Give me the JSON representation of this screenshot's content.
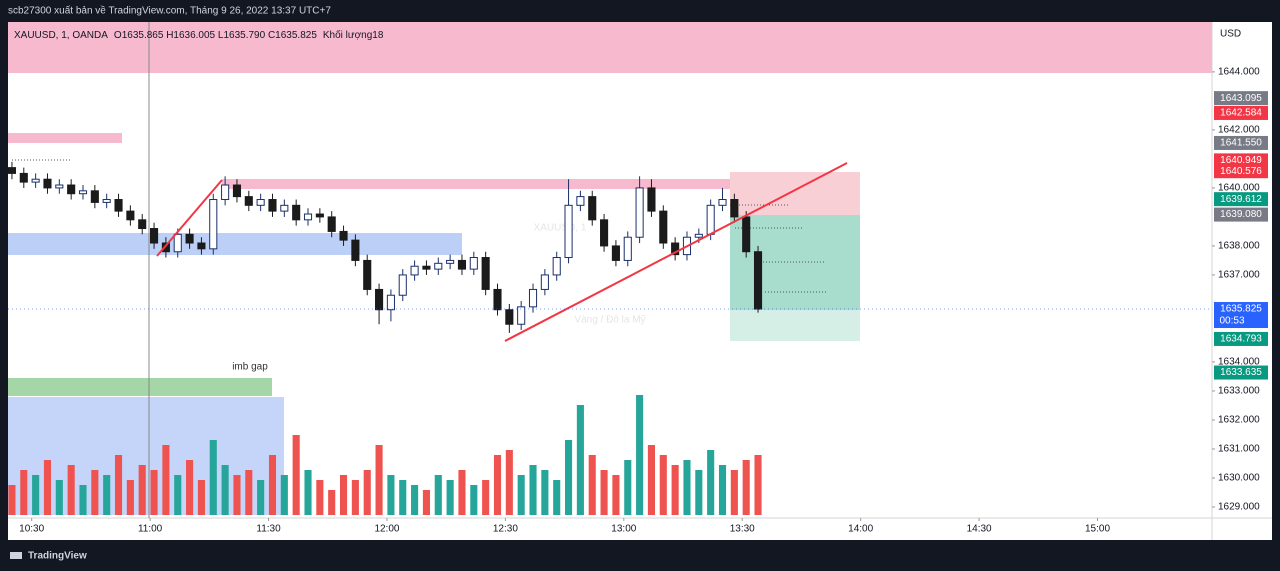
{
  "header": "scb27300 xuất bản về TradingView.com, Tháng 9 26, 2022 13:37 UTC+7",
  "footer": "TradingView",
  "chart_data": {
    "type": "candlestick",
    "symbol_legend": "XAUUSD, 1, OANDA",
    "ohlc_legend": "O1635.865 H1636.005 L1635.790 C1635.825",
    "volume_legend": "Khối lượng18",
    "watermark": "XAUUSD, 1",
    "watermark_sub": "Vàng / Đô la Mỹ",
    "annotation": "imb gap",
    "currency": "USD",
    "countdown": "00:53",
    "up_color": "#1a2f6b",
    "down_color": "#1b1b1b",
    "volume_up_color": "#26a69a",
    "volume_down_color": "#ef5350",
    "x": [
      "10:25",
      "10:28",
      "10:31",
      "10:34",
      "10:37",
      "10:40",
      "10:43",
      "10:46",
      "10:49",
      "10:52",
      "10:55",
      "10:58",
      "11:01",
      "11:04",
      "11:07",
      "11:10",
      "11:13",
      "11:16",
      "11:19",
      "11:22",
      "11:25",
      "11:28",
      "11:31",
      "11:34",
      "11:37",
      "11:40",
      "11:43",
      "11:46",
      "11:49",
      "11:52",
      "11:55",
      "11:58",
      "12:01",
      "12:04",
      "12:07",
      "12:10",
      "12:13",
      "12:16",
      "12:19",
      "12:22",
      "12:25",
      "12:28",
      "12:31",
      "12:34",
      "12:37",
      "12:40",
      "12:43",
      "12:46",
      "12:49",
      "12:52",
      "12:55",
      "12:58",
      "13:01",
      "13:04",
      "13:07",
      "13:10",
      "13:13",
      "13:16",
      "13:19",
      "13:22",
      "13:25",
      "13:28",
      "13:31",
      "13:34"
    ],
    "open": [
      1640.7,
      1640.5,
      1640.2,
      1640.3,
      1640.0,
      1640.1,
      1639.8,
      1639.9,
      1639.5,
      1639.6,
      1639.2,
      1638.9,
      1638.6,
      1638.1,
      1637.8,
      1638.4,
      1638.1,
      1637.9,
      1639.6,
      1640.1,
      1639.7,
      1639.4,
      1639.6,
      1639.2,
      1639.4,
      1638.9,
      1639.1,
      1639.0,
      1638.5,
      1638.2,
      1637.5,
      1636.5,
      1635.8,
      1636.3,
      1637.0,
      1637.3,
      1637.2,
      1637.4,
      1637.5,
      1637.2,
      1637.6,
      1636.5,
      1635.8,
      1635.3,
      1635.9,
      1636.5,
      1637.0,
      1637.6,
      1639.4,
      1639.7,
      1638.9,
      1638.0,
      1637.5,
      1638.3,
      1640.0,
      1639.2,
      1638.1,
      1637.7,
      1638.3,
      1638.4,
      1639.4,
      1639.6,
      1639.0,
      1637.8
    ],
    "high": [
      1640.9,
      1640.7,
      1640.5,
      1640.5,
      1640.3,
      1640.3,
      1640.1,
      1640.1,
      1639.8,
      1639.8,
      1639.4,
      1639.1,
      1638.8,
      1638.3,
      1638.6,
      1638.6,
      1638.3,
      1639.8,
      1640.4,
      1640.3,
      1639.9,
      1639.8,
      1639.8,
      1639.6,
      1639.6,
      1639.3,
      1639.3,
      1639.2,
      1638.7,
      1638.4,
      1637.7,
      1636.7,
      1636.5,
      1637.2,
      1637.5,
      1637.5,
      1637.6,
      1637.7,
      1637.7,
      1637.8,
      1637.8,
      1636.7,
      1636.0,
      1636.1,
      1636.7,
      1637.2,
      1637.8,
      1640.3,
      1639.9,
      1639.9,
      1639.1,
      1638.2,
      1638.5,
      1640.4,
      1640.3,
      1639.4,
      1638.3,
      1638.5,
      1638.6,
      1639.6,
      1640.0,
      1639.8,
      1639.2,
      1638.0
    ],
    "low": [
      1640.3,
      1640.0,
      1640.0,
      1639.8,
      1639.8,
      1639.6,
      1639.6,
      1639.3,
      1639.3,
      1639.0,
      1638.7,
      1638.4,
      1637.9,
      1637.6,
      1637.6,
      1637.9,
      1637.7,
      1637.7,
      1639.4,
      1639.5,
      1639.2,
      1639.2,
      1639.0,
      1639.0,
      1638.7,
      1638.7,
      1638.8,
      1638.3,
      1638.0,
      1637.3,
      1636.3,
      1635.3,
      1635.4,
      1636.1,
      1636.8,
      1637.0,
      1637.0,
      1637.2,
      1637.0,
      1637.0,
      1636.3,
      1635.6,
      1635.0,
      1635.1,
      1635.7,
      1636.3,
      1636.8,
      1637.4,
      1639.2,
      1638.7,
      1637.8,
      1637.3,
      1637.3,
      1638.1,
      1639.0,
      1637.9,
      1637.5,
      1637.5,
      1638.1,
      1638.2,
      1639.2,
      1638.8,
      1637.6,
      1635.7
    ],
    "close": [
      1640.5,
      1640.2,
      1640.3,
      1640.0,
      1640.1,
      1639.8,
      1639.9,
      1639.5,
      1639.6,
      1639.2,
      1638.9,
      1638.6,
      1638.1,
      1637.8,
      1638.4,
      1638.1,
      1637.9,
      1639.6,
      1640.1,
      1639.7,
      1639.4,
      1639.6,
      1639.2,
      1639.4,
      1638.9,
      1639.1,
      1639.0,
      1638.5,
      1638.2,
      1637.5,
      1636.5,
      1635.8,
      1636.3,
      1637.0,
      1637.3,
      1637.2,
      1637.4,
      1637.5,
      1637.2,
      1637.6,
      1636.5,
      1635.8,
      1635.3,
      1635.9,
      1636.5,
      1637.0,
      1637.6,
      1639.4,
      1639.7,
      1638.9,
      1638.0,
      1637.5,
      1638.3,
      1640.0,
      1639.2,
      1638.1,
      1637.7,
      1638.3,
      1638.4,
      1639.4,
      1639.6,
      1639.0,
      1637.8,
      1635.825
    ],
    "volume": [
      30,
      45,
      40,
      55,
      35,
      50,
      30,
      45,
      40,
      60,
      35,
      50,
      45,
      70,
      40,
      55,
      35,
      75,
      50,
      40,
      45,
      35,
      60,
      40,
      80,
      45,
      35,
      25,
      40,
      35,
      45,
      70,
      40,
      35,
      30,
      25,
      40,
      35,
      45,
      30,
      35,
      60,
      65,
      40,
      50,
      45,
      35,
      75,
      110,
      60,
      45,
      40,
      55,
      120,
      70,
      60,
      50,
      55,
      45,
      65,
      50,
      45,
      55,
      60
    ],
    "xlim": [
      "10:24",
      "15:29"
    ],
    "xticks": [
      "10:30",
      "11:00",
      "11:30",
      "12:00",
      "12:30",
      "13:00",
      "13:30",
      "14:00",
      "14:30",
      "15:00"
    ],
    "ylim": [
      1628.62,
      1645.72
    ],
    "yticks": [
      {
        "value": 1644,
        "label": "1644.000"
      },
      {
        "value": 1642,
        "label": "1642.000"
      },
      {
        "value": 1640,
        "label": "1640.000"
      },
      {
        "value": 1638,
        "label": "1638.000"
      },
      {
        "value": 1637,
        "label": "1637.000"
      },
      {
        "value": 1634,
        "label": "1634.000"
      },
      {
        "value": 1633,
        "label": "1633.000"
      },
      {
        "value": 1632,
        "label": "1632.000"
      },
      {
        "value": 1631,
        "label": "1631.000"
      },
      {
        "value": 1630,
        "label": "1630.000"
      },
      {
        "value": 1629,
        "label": "1629.000"
      }
    ],
    "price_labels": [
      {
        "value": 1643.095,
        "label": "1643.095",
        "color": "#787b86"
      },
      {
        "value": 1642.584,
        "label": "1642.584",
        "color": "#f23645"
      },
      {
        "value": 1641.55,
        "label": "1641.550",
        "color": "#787b86"
      },
      {
        "value": 1640.949,
        "label": "1640.949",
        "color": "#f23645"
      },
      {
        "value": 1640.576,
        "label": "1640.576",
        "color": "#f23645"
      },
      {
        "value": 1639.612,
        "label": "1639.612",
        "color": "#089981"
      },
      {
        "value": 1639.08,
        "label": "1639.080",
        "color": "#787b86"
      },
      {
        "value": 1634.793,
        "label": "1634.793",
        "color": "#089981"
      },
      {
        "value": 1633.635,
        "label": "1633.635",
        "color": "#089981"
      }
    ],
    "last_price": {
      "value": 1635.825,
      "label": "1635.825",
      "color": "#2962ff"
    }
  }
}
